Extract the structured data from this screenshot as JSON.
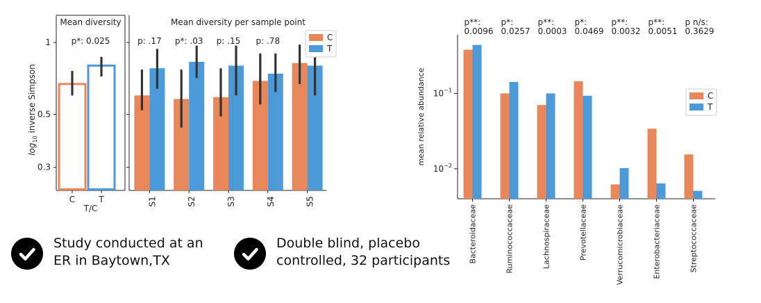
{
  "colors": {
    "C": "#E8875A",
    "T": "#4C9AD8",
    "axis": "#222222",
    "errbar": "#333333"
  },
  "chart_data": [
    {
      "id": "mean_diversity",
      "type": "bar",
      "title": "Mean diversity",
      "xlabel": "T/C",
      "ylabel_prefix": "log",
      "ylabel_sub": "10",
      "ylabel_rest": " inverse Simpson",
      "y_scale": "log",
      "ylim": [
        0.24,
        1.3
      ],
      "y_ticks": [
        {
          "v": 0.3,
          "label": "0.3"
        },
        {
          "v": 0.5,
          "label": "0.5"
        },
        {
          "v": 1,
          "label": "1"
        }
      ],
      "categories": [
        "C",
        "T"
      ],
      "values": [
        0.67,
        0.8
      ],
      "err_low": [
        0.6,
        0.72
      ],
      "err_high": [
        0.76,
        0.87
      ],
      "style": "outline",
      "annotation": "p*: 0.025"
    },
    {
      "id": "per_sample_point",
      "type": "bar",
      "title": "Mean diversity per sample point",
      "y_scale": "log",
      "ylim": [
        0.24,
        1.3
      ],
      "categories": [
        "S1",
        "S2",
        "S3",
        "S4",
        "S5"
      ],
      "series": [
        {
          "name": "C",
          "values": [
            0.6,
            0.58,
            0.59,
            0.69,
            0.82
          ],
          "err_low": [
            0.52,
            0.44,
            0.49,
            0.55,
            0.67
          ],
          "err_high": [
            0.77,
            0.77,
            0.78,
            0.9,
            0.98
          ]
        },
        {
          "name": "T",
          "values": [
            0.78,
            0.83,
            0.8,
            0.74,
            0.8
          ],
          "err_low": [
            0.64,
            0.71,
            0.6,
            0.62,
            0.6
          ],
          "err_high": [
            0.94,
            0.97,
            0.97,
            0.9,
            0.96
          ]
        }
      ],
      "annotations": [
        "p: .17",
        "p*: .03",
        "p: .15",
        "p: .78",
        "p"
      ],
      "legend": {
        "entries": [
          "C",
          "T"
        ],
        "loc": "top-right"
      }
    },
    {
      "id": "relative_abundance",
      "type": "bar",
      "ylabel": "mean relative abundance",
      "y_scale": "log",
      "ylim": [
        0.004,
        0.6
      ],
      "y_ticks": [
        {
          "v": 0.01,
          "base": "10",
          "exp": "−2"
        },
        {
          "v": 0.1,
          "base": "10",
          "exp": "−1"
        }
      ],
      "categories": [
        "Bacteroidaceae",
        "Ruminococcaceae",
        "Lachnospiraceae",
        "Prevotellaceae",
        "Verrucomicrobiaceae",
        "Enterobacteriaceae",
        "Streptococcaceae"
      ],
      "series": [
        {
          "name": "C",
          "values": [
            0.38,
            0.1,
            0.07,
            0.145,
            0.0062,
            0.034,
            0.0155
          ]
        },
        {
          "name": "T",
          "values": [
            0.44,
            0.142,
            0.1,
            0.093,
            0.0102,
            0.0064,
            0.0051
          ]
        }
      ],
      "annotations": [
        {
          "line1": "p**:",
          "line2": "0.0096"
        },
        {
          "line1": "p*:",
          "line2": "0.0257"
        },
        {
          "line1": "p**:",
          "line2": "0.0003"
        },
        {
          "line1": "p*:",
          "line2": "0.0469"
        },
        {
          "line1": "p**:",
          "line2": "0.0032"
        },
        {
          "line1": "p**:",
          "line2": "0.0051"
        },
        {
          "line1": "p n/s:",
          "line2": "0.3629"
        }
      ],
      "legend": {
        "entries": [
          "C",
          "T"
        ],
        "loc": "center-right"
      }
    }
  ],
  "checklist": [
    {
      "lines": [
        "Study conducted at an",
        "ER in Baytown,TX"
      ]
    },
    {
      "lines": [
        "Double blind, placebo",
        "controlled, 32 participants"
      ]
    }
  ]
}
